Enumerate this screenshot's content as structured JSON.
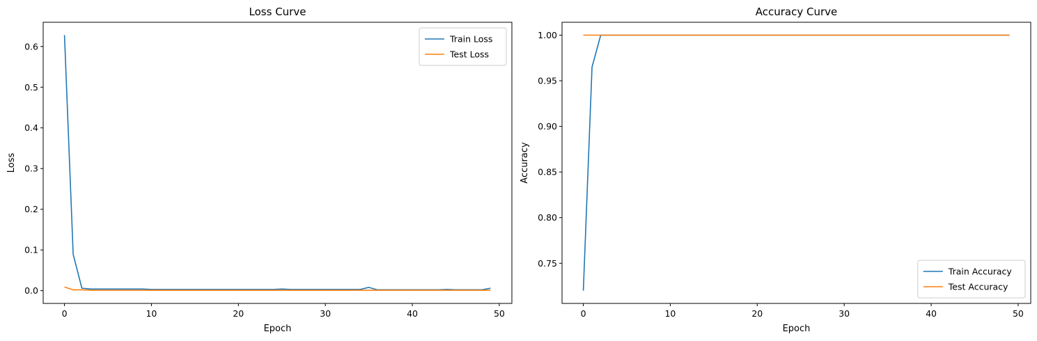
{
  "chart_data": [
    {
      "type": "line",
      "title": "Loss Curve",
      "xlabel": "Epoch",
      "ylabel": "Loss",
      "xlim": [
        -2.45,
        51.45
      ],
      "ylim": [
        -0.0314,
        0.6595
      ],
      "xticks": [
        0,
        10,
        20,
        30,
        40,
        50
      ],
      "xtick_labels": [
        "0",
        "10",
        "20",
        "30",
        "40",
        "50"
      ],
      "yticks": [
        0.0,
        0.1,
        0.2,
        0.3,
        0.4,
        0.5,
        0.6
      ],
      "ytick_labels": [
        "0.0",
        "0.1",
        "0.2",
        "0.3",
        "0.4",
        "0.5",
        "0.6"
      ],
      "grid": false,
      "legend_position": "top-right",
      "series": [
        {
          "name": "Train Loss",
          "color": "#1f77b4",
          "x": [
            0,
            1,
            2,
            3,
            4,
            5,
            6,
            7,
            8,
            9,
            10,
            11,
            12,
            13,
            14,
            15,
            16,
            17,
            18,
            19,
            20,
            21,
            22,
            23,
            24,
            25,
            26,
            27,
            28,
            29,
            30,
            31,
            32,
            33,
            34,
            35,
            36,
            37,
            38,
            39,
            40,
            41,
            42,
            43,
            44,
            45,
            46,
            47,
            48,
            49
          ],
          "values": [
            0.628,
            0.089,
            0.006,
            0.004,
            0.004,
            0.004,
            0.004,
            0.004,
            0.004,
            0.004,
            0.003,
            0.003,
            0.003,
            0.003,
            0.003,
            0.003,
            0.003,
            0.003,
            0.003,
            0.003,
            0.003,
            0.003,
            0.003,
            0.003,
            0.003,
            0.004,
            0.003,
            0.003,
            0.003,
            0.003,
            0.003,
            0.003,
            0.003,
            0.003,
            0.003,
            0.008,
            0.002,
            0.002,
            0.002,
            0.002,
            0.002,
            0.002,
            0.002,
            0.002,
            0.003,
            0.002,
            0.002,
            0.002,
            0.002,
            0.006
          ]
        },
        {
          "name": "Test Loss",
          "color": "#ff7f0e",
          "x": [
            0,
            1,
            2,
            3,
            4,
            5,
            6,
            7,
            8,
            9,
            10,
            11,
            12,
            13,
            14,
            15,
            16,
            17,
            18,
            19,
            20,
            21,
            22,
            23,
            24,
            25,
            26,
            27,
            28,
            29,
            30,
            31,
            32,
            33,
            34,
            35,
            36,
            37,
            38,
            39,
            40,
            41,
            42,
            43,
            44,
            45,
            46,
            47,
            48,
            49
          ],
          "values": [
            0.009,
            0.002,
            0.002,
            0.001,
            0.001,
            0.001,
            0.001,
            0.001,
            0.001,
            0.001,
            0.001,
            0.001,
            0.001,
            0.001,
            0.001,
            0.001,
            0.001,
            0.001,
            0.001,
            0.001,
            0.001,
            0.001,
            0.001,
            0.001,
            0.001,
            0.001,
            0.001,
            0.001,
            0.001,
            0.001,
            0.001,
            0.001,
            0.001,
            0.001,
            0.001,
            0.001,
            0.001,
            0.001,
            0.001,
            0.001,
            0.001,
            0.001,
            0.001,
            0.001,
            0.001,
            0.001,
            0.001,
            0.001,
            0.001,
            0.001
          ]
        }
      ]
    },
    {
      "type": "line",
      "title": "Accuracy Curve",
      "xlabel": "Epoch",
      "ylabel": "Accuracy",
      "xlim": [
        -2.45,
        51.45
      ],
      "ylim": [
        0.706,
        1.0141
      ],
      "xticks": [
        0,
        10,
        20,
        30,
        40,
        50
      ],
      "xtick_labels": [
        "0",
        "10",
        "20",
        "30",
        "40",
        "50"
      ],
      "yticks": [
        0.75,
        0.8,
        0.85,
        0.9,
        0.95,
        1.0
      ],
      "ytick_labels": [
        "0.75",
        "0.80",
        "0.85",
        "0.90",
        "0.95",
        "1.00"
      ],
      "grid": false,
      "legend_position": "bottom-right",
      "series": [
        {
          "name": "Train Accuracy",
          "color": "#1f77b4",
          "x": [
            0,
            1,
            2,
            3,
            4,
            5,
            6,
            7,
            8,
            9,
            10,
            11,
            12,
            13,
            14,
            15,
            16,
            17,
            18,
            19,
            20,
            21,
            22,
            23,
            24,
            25,
            26,
            27,
            28,
            29,
            30,
            31,
            32,
            33,
            34,
            35,
            36,
            37,
            38,
            39,
            40,
            41,
            42,
            43,
            44,
            45,
            46,
            47,
            48,
            49
          ],
          "values": [
            0.72,
            0.965,
            1.0,
            1.0,
            1.0,
            1.0,
            1.0,
            1.0,
            1.0,
            1.0,
            1.0,
            1.0,
            1.0,
            1.0,
            1.0,
            1.0,
            1.0,
            1.0,
            1.0,
            1.0,
            1.0,
            1.0,
            1.0,
            1.0,
            1.0,
            1.0,
            1.0,
            1.0,
            1.0,
            1.0,
            1.0,
            1.0,
            1.0,
            1.0,
            1.0,
            1.0,
            1.0,
            1.0,
            1.0,
            1.0,
            1.0,
            1.0,
            1.0,
            1.0,
            1.0,
            1.0,
            1.0,
            1.0,
            1.0,
            1.0
          ]
        },
        {
          "name": "Test Accuracy",
          "color": "#ff7f0e",
          "x": [
            0,
            1,
            2,
            3,
            4,
            5,
            6,
            7,
            8,
            9,
            10,
            11,
            12,
            13,
            14,
            15,
            16,
            17,
            18,
            19,
            20,
            21,
            22,
            23,
            24,
            25,
            26,
            27,
            28,
            29,
            30,
            31,
            32,
            33,
            34,
            35,
            36,
            37,
            38,
            39,
            40,
            41,
            42,
            43,
            44,
            45,
            46,
            47,
            48,
            49
          ],
          "values": [
            1.0,
            1.0,
            1.0,
            1.0,
            1.0,
            1.0,
            1.0,
            1.0,
            1.0,
            1.0,
            1.0,
            1.0,
            1.0,
            1.0,
            1.0,
            1.0,
            1.0,
            1.0,
            1.0,
            1.0,
            1.0,
            1.0,
            1.0,
            1.0,
            1.0,
            1.0,
            1.0,
            1.0,
            1.0,
            1.0,
            1.0,
            1.0,
            1.0,
            1.0,
            1.0,
            1.0,
            1.0,
            1.0,
            1.0,
            1.0,
            1.0,
            1.0,
            1.0,
            1.0,
            1.0,
            1.0,
            1.0,
            1.0,
            1.0,
            1.0
          ]
        }
      ]
    }
  ]
}
